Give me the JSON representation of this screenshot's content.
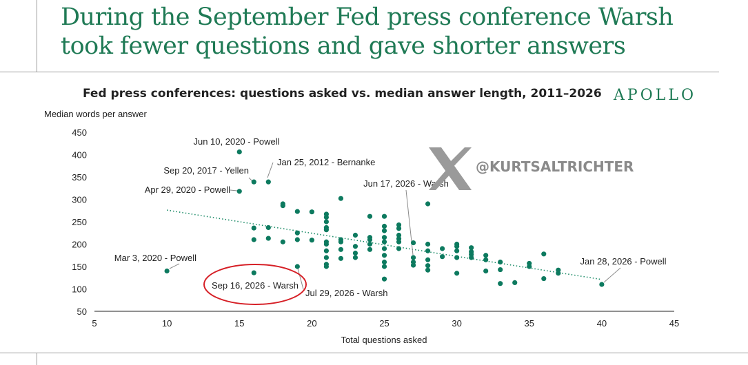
{
  "headline": "During the September Fed press conference Warsh took fewer questions and gave shorter answers",
  "brand": "APOLLO",
  "watermark": {
    "icon": "x-logo-icon",
    "text": "@KURTSALTRICHTER",
    "color": "#8a8a8a"
  },
  "colors": {
    "accent": "#1f7a55",
    "point": "#0d7a5f",
    "highlight": "#d61f26"
  },
  "chart_data": {
    "type": "scatter",
    "title": "Fed press conferences: questions asked vs. median answer length, 2011–2026",
    "xlabel": "Total questions asked",
    "ylabel": "Median words per answer",
    "xlim": [
      5,
      45
    ],
    "ylim": [
      50,
      450
    ],
    "xticks": [
      5,
      10,
      15,
      20,
      25,
      30,
      35,
      40,
      45
    ],
    "yticks": [
      50,
      100,
      150,
      200,
      250,
      300,
      350,
      400,
      450
    ],
    "grid": false,
    "trendline": {
      "style": "dotted",
      "x": [
        10,
        40
      ],
      "y": [
        276,
        121
      ]
    },
    "points": [
      {
        "x": 15,
        "y": 406
      },
      {
        "x": 16,
        "y": 339
      },
      {
        "x": 17,
        "y": 339
      },
      {
        "x": 15,
        "y": 318
      },
      {
        "x": 10,
        "y": 140
      },
      {
        "x": 16,
        "y": 136
      },
      {
        "x": 40,
        "y": 110
      },
      {
        "x": 16,
        "y": 236
      },
      {
        "x": 16,
        "y": 210
      },
      {
        "x": 17,
        "y": 237
      },
      {
        "x": 17,
        "y": 213
      },
      {
        "x": 18,
        "y": 290
      },
      {
        "x": 18,
        "y": 286
      },
      {
        "x": 18,
        "y": 205
      },
      {
        "x": 19,
        "y": 273
      },
      {
        "x": 19,
        "y": 225
      },
      {
        "x": 19,
        "y": 210
      },
      {
        "x": 19,
        "y": 150
      },
      {
        "x": 20,
        "y": 272
      },
      {
        "x": 20,
        "y": 209
      },
      {
        "x": 21,
        "y": 267
      },
      {
        "x": 21,
        "y": 260
      },
      {
        "x": 21,
        "y": 250
      },
      {
        "x": 21,
        "y": 237
      },
      {
        "x": 21,
        "y": 232
      },
      {
        "x": 21,
        "y": 205
      },
      {
        "x": 21,
        "y": 200
      },
      {
        "x": 21,
        "y": 185
      },
      {
        "x": 21,
        "y": 170
      },
      {
        "x": 21,
        "y": 155
      },
      {
        "x": 21,
        "y": 150
      },
      {
        "x": 22,
        "y": 302
      },
      {
        "x": 22,
        "y": 210
      },
      {
        "x": 22,
        "y": 205
      },
      {
        "x": 22,
        "y": 188
      },
      {
        "x": 22,
        "y": 168
      },
      {
        "x": 23,
        "y": 220
      },
      {
        "x": 23,
        "y": 195
      },
      {
        "x": 23,
        "y": 180
      },
      {
        "x": 23,
        "y": 170
      },
      {
        "x": 24,
        "y": 262
      },
      {
        "x": 24,
        "y": 215
      },
      {
        "x": 24,
        "y": 210
      },
      {
        "x": 24,
        "y": 200
      },
      {
        "x": 24,
        "y": 188
      },
      {
        "x": 25,
        "y": 262
      },
      {
        "x": 25,
        "y": 240
      },
      {
        "x": 25,
        "y": 230
      },
      {
        "x": 25,
        "y": 215
      },
      {
        "x": 25,
        "y": 205
      },
      {
        "x": 25,
        "y": 190
      },
      {
        "x": 25,
        "y": 175
      },
      {
        "x": 25,
        "y": 160
      },
      {
        "x": 25,
        "y": 150
      },
      {
        "x": 25,
        "y": 122
      },
      {
        "x": 26,
        "y": 243
      },
      {
        "x": 26,
        "y": 235
      },
      {
        "x": 26,
        "y": 220
      },
      {
        "x": 26,
        "y": 212
      },
      {
        "x": 26,
        "y": 205
      },
      {
        "x": 26,
        "y": 190
      },
      {
        "x": 27,
        "y": 203
      },
      {
        "x": 27,
        "y": 170
      },
      {
        "x": 27,
        "y": 160
      },
      {
        "x": 27,
        "y": 153
      },
      {
        "x": 28,
        "y": 290
      },
      {
        "x": 28,
        "y": 200
      },
      {
        "x": 28,
        "y": 185
      },
      {
        "x": 28,
        "y": 165
      },
      {
        "x": 28,
        "y": 152
      },
      {
        "x": 28,
        "y": 142
      },
      {
        "x": 29,
        "y": 190
      },
      {
        "x": 29,
        "y": 172
      },
      {
        "x": 30,
        "y": 200
      },
      {
        "x": 30,
        "y": 195
      },
      {
        "x": 30,
        "y": 185
      },
      {
        "x": 30,
        "y": 170
      },
      {
        "x": 30,
        "y": 135
      },
      {
        "x": 31,
        "y": 192
      },
      {
        "x": 31,
        "y": 183
      },
      {
        "x": 31,
        "y": 177
      },
      {
        "x": 31,
        "y": 170
      },
      {
        "x": 32,
        "y": 175
      },
      {
        "x": 32,
        "y": 165
      },
      {
        "x": 32,
        "y": 140
      },
      {
        "x": 33,
        "y": 160
      },
      {
        "x": 33,
        "y": 143
      },
      {
        "x": 33,
        "y": 112
      },
      {
        "x": 34,
        "y": 114
      },
      {
        "x": 35,
        "y": 157
      },
      {
        "x": 35,
        "y": 150
      },
      {
        "x": 36,
        "y": 178
      },
      {
        "x": 36,
        "y": 123
      },
      {
        "x": 37,
        "y": 142
      },
      {
        "x": 37,
        "y": 135
      }
    ],
    "annotations": [
      {
        "text": "Jun 10, 2020 - Powell",
        "x": 15,
        "y": 406
      },
      {
        "text": "Sep 20, 2017 - Yellen",
        "x": 16,
        "y": 339
      },
      {
        "text": "Jan 25, 2012 - Bernanke",
        "x": 17,
        "y": 339
      },
      {
        "text": "Apr 29, 2020 - Powell",
        "x": 15,
        "y": 318
      },
      {
        "text": "Mar 3, 2020 - Powell",
        "x": 10,
        "y": 140
      },
      {
        "text": "Sep 16, 2026 - Warsh",
        "x": 16,
        "y": 136,
        "highlight": true
      },
      {
        "text": "Jul 29, 2026 - Warsh",
        "x": 19,
        "y": 150
      },
      {
        "text": "Jun 17, 2026 - Warsh",
        "x": 27,
        "y": 160
      },
      {
        "text": "Jan 28, 2026 - Powell",
        "x": 40,
        "y": 110
      }
    ]
  }
}
